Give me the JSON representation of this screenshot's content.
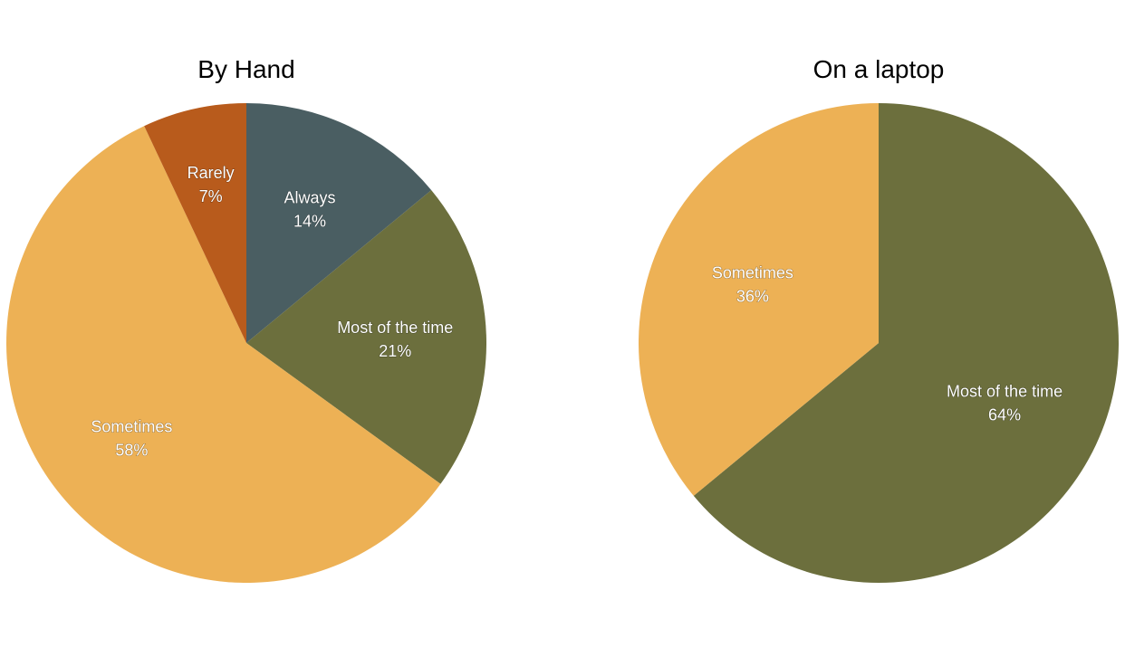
{
  "chart_data": [
    {
      "type": "pie",
      "title": "By Hand",
      "slices": [
        {
          "label": "Always",
          "value": 14,
          "display": "14%",
          "color": "#4a5e62"
        },
        {
          "label": "Most of the time",
          "value": 21,
          "display": "21%",
          "color": "#6c6f3d"
        },
        {
          "label": "Sometimes",
          "value": 58,
          "display": "58%",
          "color": "#edb155"
        },
        {
          "label": "Rarely",
          "value": 7,
          "display": "7%",
          "color": "#b85b1c"
        }
      ]
    },
    {
      "type": "pie",
      "title": "On a laptop",
      "slices": [
        {
          "label": "Most of the time",
          "value": 64,
          "display": "64%",
          "color": "#6c6f3d"
        },
        {
          "label": "Sometimes",
          "value": 36,
          "display": "36%",
          "color": "#edb155"
        }
      ]
    }
  ]
}
